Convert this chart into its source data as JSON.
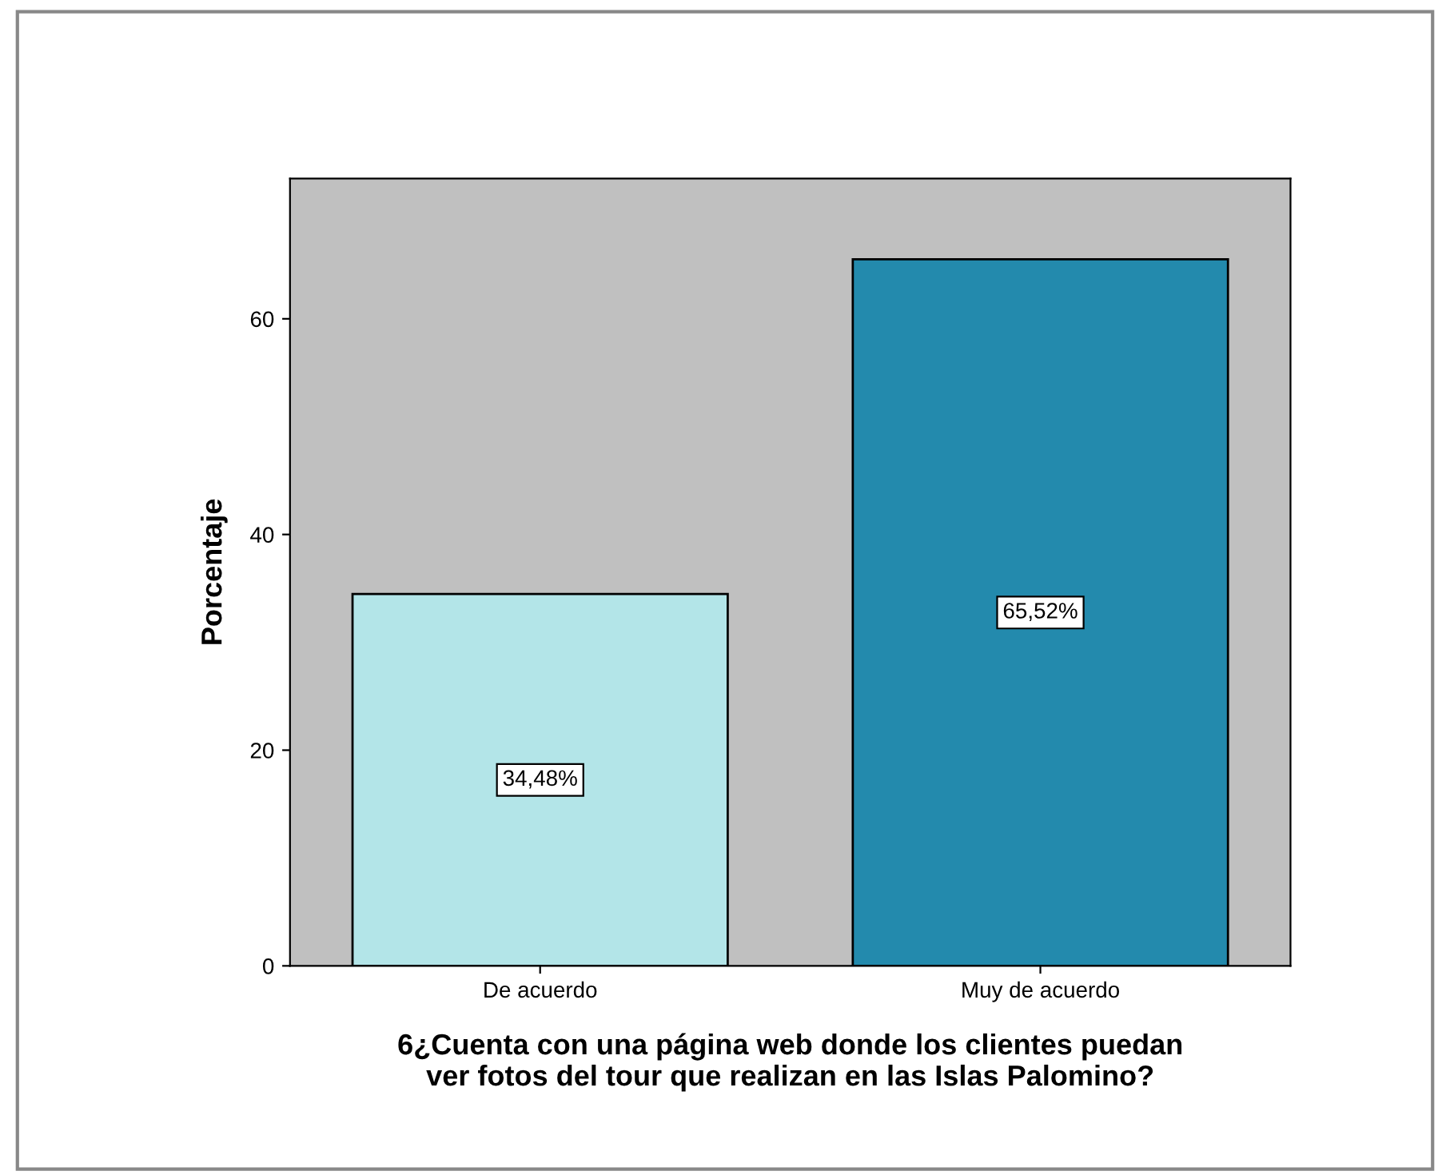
{
  "chart_data": {
    "type": "bar",
    "categories": [
      "De acuerdo",
      "Muy de acuerdo"
    ],
    "values": [
      34.48,
      65.52
    ],
    "colors": [
      "#b3e5e8",
      "#238aad"
    ],
    "value_labels": [
      "34,48%",
      "65,52%"
    ],
    "xlabel": "6¿Cuenta con una página web donde los clientes puedan\nver fotos del tour que realizan en las Islas Palomino?",
    "ylabel": "Porcentaje",
    "ylim": [
      0,
      73
    ],
    "yticks": [
      0,
      20,
      40,
      60
    ],
    "grid": false
  }
}
